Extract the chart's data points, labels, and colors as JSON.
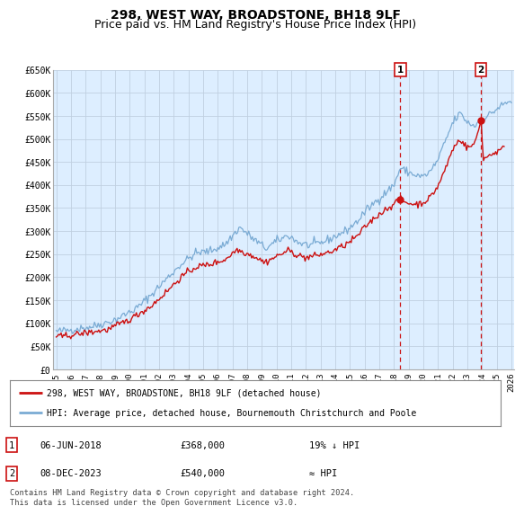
{
  "title": "298, WEST WAY, BROADSTONE, BH18 9LF",
  "subtitle": "Price paid vs. HM Land Registry's House Price Index (HPI)",
  "ylabel_ticks": [
    "£0",
    "£50K",
    "£100K",
    "£150K",
    "£200K",
    "£250K",
    "£300K",
    "£350K",
    "£400K",
    "£450K",
    "£500K",
    "£550K",
    "£600K",
    "£650K"
  ],
  "ylim": [
    0,
    650000
  ],
  "ytick_values": [
    0,
    50000,
    100000,
    150000,
    200000,
    250000,
    300000,
    350000,
    400000,
    450000,
    500000,
    550000,
    600000,
    650000
  ],
  "xlim_start": 1995,
  "xlim_end": 2026,
  "xtick_years": [
    1995,
    1996,
    1997,
    1998,
    1999,
    2000,
    2001,
    2002,
    2003,
    2004,
    2005,
    2006,
    2007,
    2008,
    2009,
    2010,
    2011,
    2012,
    2013,
    2014,
    2015,
    2016,
    2017,
    2018,
    2019,
    2020,
    2021,
    2022,
    2023,
    2024,
    2025,
    2026
  ],
  "hpi_color": "#7aabd4",
  "price_color": "#cc1111",
  "marker1_date": 2018.43,
  "marker1_price": 368000,
  "marker2_date": 2023.93,
  "marker2_price": 540000,
  "annotation1": [
    "1",
    "06-JUN-2018",
    "£368,000",
    "19% ↓ HPI"
  ],
  "annotation2": [
    "2",
    "08-DEC-2023",
    "£540,000",
    "≈ HPI"
  ],
  "legend1": "298, WEST WAY, BROADSTONE, BH18 9LF (detached house)",
  "legend2": "HPI: Average price, detached house, Bournemouth Christchurch and Poole",
  "footer": "Contains HM Land Registry data © Crown copyright and database right 2024.\nThis data is licensed under the Open Government Licence v3.0.",
  "bg_color": "#ffffff",
  "chart_bg_color": "#ddeeff",
  "grid_color": "#c0d0e0",
  "title_fontsize": 10,
  "subtitle_fontsize": 9
}
